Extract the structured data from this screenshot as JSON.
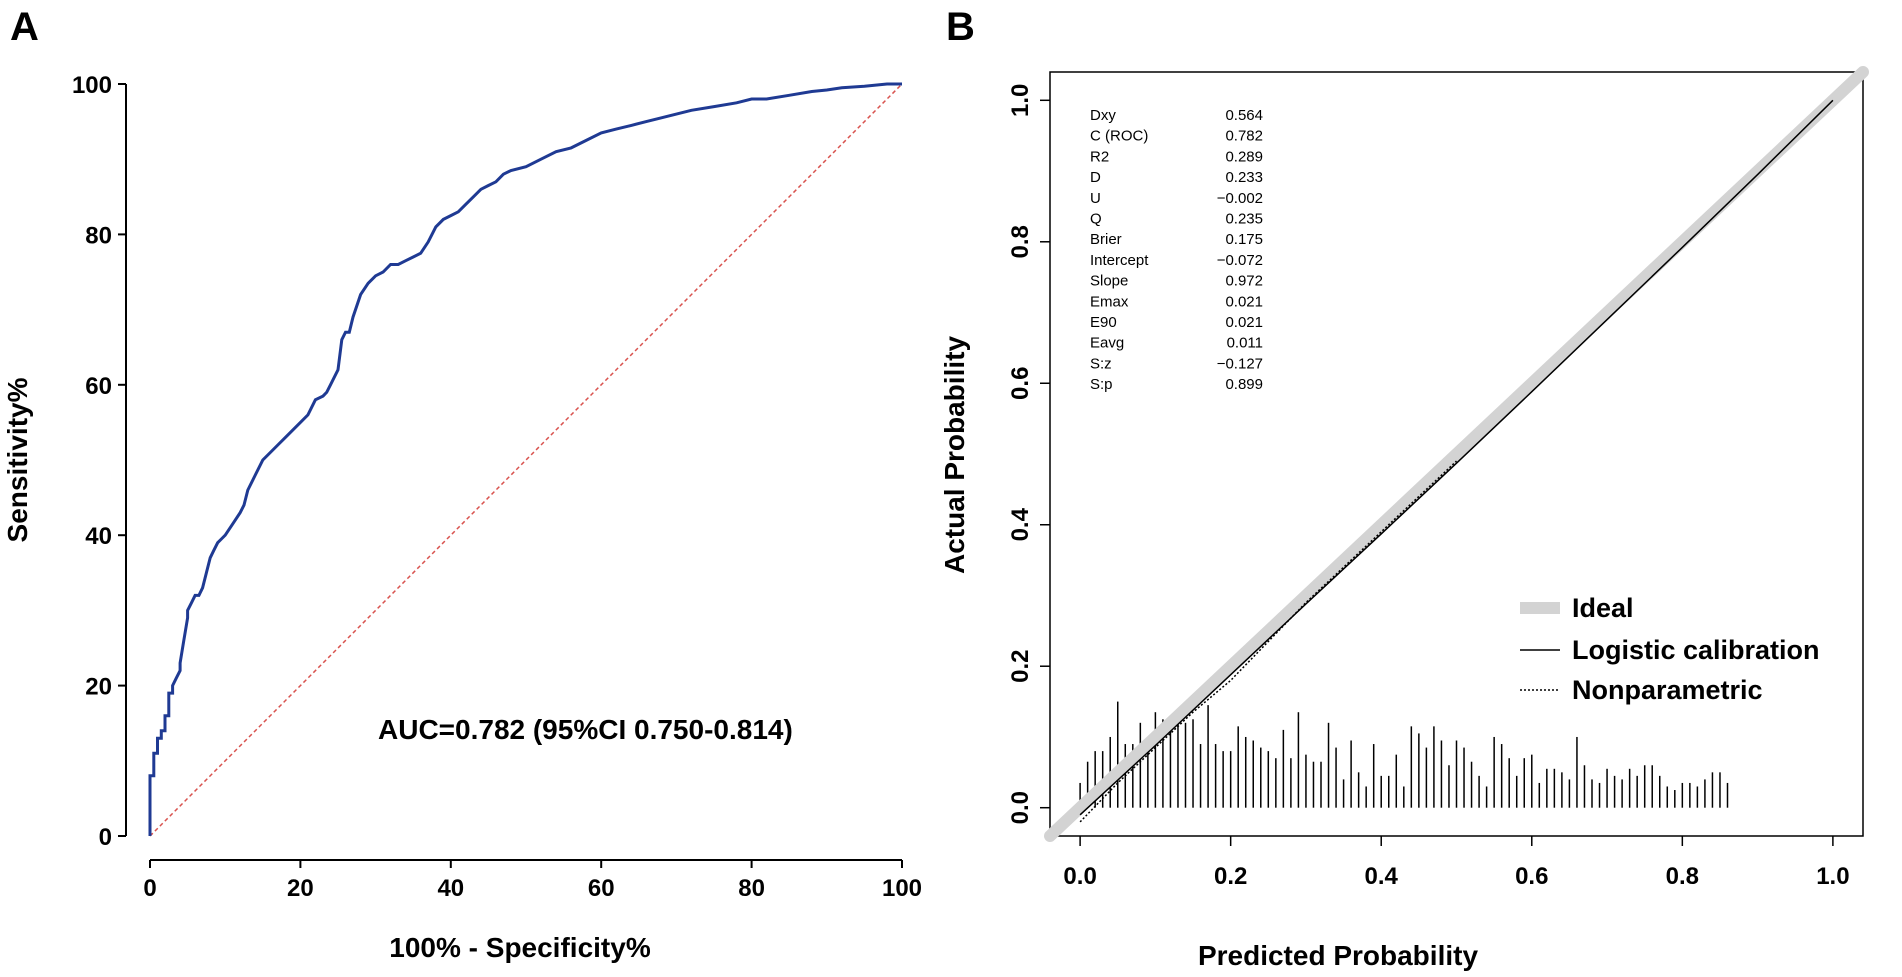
{
  "chart_data": [
    {
      "panel": "A",
      "type": "line",
      "xlabel": "100% - Specificity%",
      "ylabel": "Sensitivity%",
      "xlim": [
        0,
        100
      ],
      "ylim": [
        0,
        100
      ],
      "xticks": [
        "0",
        "20",
        "40",
        "60",
        "80",
        "100"
      ],
      "yticks": [
        "0",
        "20",
        "40",
        "60",
        "80",
        "100"
      ],
      "annotation": "AUC=0.782 (95%CI 0.750-0.814)",
      "colors": {
        "roc": "#1f3a93",
        "reference": "#d9534f"
      },
      "series": [
        {
          "x": [
            0,
            0,
            0.5,
            0.5,
            1,
            1,
            1.5,
            1.5,
            2,
            2,
            2.5,
            2.5,
            3,
            3,
            3.5,
            4,
            4,
            4.5,
            5,
            5,
            5.5,
            6,
            6.5,
            7,
            7.5,
            8,
            8.5,
            9,
            9.5,
            10,
            11,
            12,
            12.5,
            13,
            14,
            15,
            16,
            17,
            18,
            19,
            20,
            21,
            22,
            23,
            23.5,
            24,
            25,
            25.5,
            26,
            26.5,
            27,
            28,
            29,
            30,
            31,
            32,
            33,
            34,
            35,
            36,
            37,
            38,
            39,
            40,
            41,
            42,
            43,
            44,
            45,
            46,
            47,
            48,
            50,
            52,
            54,
            56,
            58,
            60,
            62,
            64,
            66,
            68,
            70,
            72,
            75,
            78,
            80,
            82,
            85,
            88,
            90,
            92,
            95,
            98,
            100
          ],
          "y": [
            0,
            8,
            8,
            11,
            11,
            13,
            13,
            14,
            14,
            16,
            16,
            19,
            19,
            20,
            21,
            22,
            23,
            26,
            29,
            30,
            31,
            32,
            32,
            33,
            35,
            37,
            38,
            39,
            39.5,
            40,
            41.5,
            43,
            44,
            46,
            48,
            50,
            51,
            52,
            53,
            54,
            55,
            56,
            58,
            58.5,
            59,
            60,
            62,
            66,
            67,
            67,
            69,
            72,
            73.5,
            74.5,
            75,
            76,
            76,
            76.5,
            77,
            77.5,
            79,
            81,
            82,
            82.5,
            83,
            84,
            85,
            86,
            86.5,
            87,
            88,
            88.5,
            89,
            90,
            91,
            91.5,
            92.5,
            93.5,
            94,
            94.5,
            95,
            95.5,
            96,
            96.5,
            97,
            97.5,
            98,
            98,
            98.5,
            99,
            99.2,
            99.5,
            99.7,
            100,
            100
          ]
        },
        {
          "x": [
            0,
            100
          ],
          "y": [
            0,
            100
          ]
        }
      ]
    },
    {
      "panel": "B",
      "type": "line",
      "xlabel": "Predicted Probability",
      "ylabel": "Actual Probability",
      "xlim": [
        -0.04,
        1.04
      ],
      "ylim": [
        -0.04,
        1.04
      ],
      "xticks": [
        "0.0",
        "0.2",
        "0.4",
        "0.6",
        "0.8",
        "1.0"
      ],
      "yticks": [
        "0.0",
        "0.2",
        "0.4",
        "0.6",
        "0.8",
        "1.0"
      ],
      "stats": [
        {
          "label": "Dxy",
          "value": "0.564"
        },
        {
          "label": "C (ROC)",
          "value": "0.782"
        },
        {
          "label": "R2",
          "value": "0.289"
        },
        {
          "label": "D",
          "value": "0.233"
        },
        {
          "label": "U",
          "value": "−0.002"
        },
        {
          "label": "Q",
          "value": "0.235"
        },
        {
          "label": "Brier",
          "value": "0.175"
        },
        {
          "label": "Intercept",
          "value": "−0.072"
        },
        {
          "label": "Slope",
          "value": "0.972"
        },
        {
          "label": "Emax",
          "value": "0.021"
        },
        {
          "label": "E90",
          "value": "0.021"
        },
        {
          "label": "Eavg",
          "value": "0.011"
        },
        {
          "label": "S:z",
          "value": "−0.127"
        },
        {
          "label": "S:p",
          "value": "0.899"
        }
      ],
      "legend": [
        "Ideal",
        "Logistic calibration",
        "Nonparametric"
      ],
      "colors": {
        "ideal": "#d3d3d3",
        "logistic": "#000000",
        "nonparametric": "#000000"
      },
      "ideal": {
        "x": [
          -0.04,
          1.04
        ],
        "y": [
          -0.04,
          1.04
        ]
      },
      "logistic": {
        "x": [
          0,
          0.1,
          0.2,
          0.3,
          0.4,
          0.5,
          0.6,
          0.7,
          0.8,
          0.9,
          1.0
        ],
        "y": [
          -0.01,
          0.088,
          0.188,
          0.288,
          0.387,
          0.487,
          0.588,
          0.69,
          0.792,
          0.895,
          1.0
        ]
      },
      "nonparametric": {
        "x": [
          0,
          0.05,
          0.1,
          0.15,
          0.2,
          0.25,
          0.3,
          0.35,
          0.4,
          0.45,
          0.5
        ],
        "y": [
          -0.02,
          0.035,
          0.085,
          0.135,
          0.18,
          0.235,
          0.29,
          0.34,
          0.39,
          0.44,
          0.49
        ]
      },
      "rug": {
        "x": [
          0.0,
          0.01,
          0.02,
          0.03,
          0.04,
          0.05,
          0.06,
          0.07,
          0.08,
          0.09,
          0.1,
          0.11,
          0.12,
          0.13,
          0.14,
          0.15,
          0.16,
          0.17,
          0.18,
          0.19,
          0.2,
          0.21,
          0.22,
          0.23,
          0.24,
          0.25,
          0.26,
          0.27,
          0.28,
          0.29,
          0.3,
          0.31,
          0.32,
          0.33,
          0.34,
          0.35,
          0.36,
          0.37,
          0.38,
          0.39,
          0.4,
          0.41,
          0.42,
          0.43,
          0.44,
          0.45,
          0.46,
          0.47,
          0.48,
          0.49,
          0.5,
          0.51,
          0.52,
          0.53,
          0.54,
          0.55,
          0.56,
          0.57,
          0.58,
          0.59,
          0.6,
          0.61,
          0.62,
          0.63,
          0.64,
          0.65,
          0.66,
          0.67,
          0.68,
          0.69,
          0.7,
          0.71,
          0.72,
          0.73,
          0.74,
          0.75,
          0.76,
          0.77,
          0.78,
          0.79,
          0.8,
          0.81,
          0.82,
          0.83,
          0.84,
          0.85,
          0.86
        ],
        "y": [
          0.035,
          0.065,
          0.08,
          0.08,
          0.1,
          0.15,
          0.09,
          0.09,
          0.12,
          0.08,
          0.135,
          0.125,
          0.12,
          0.135,
          0.12,
          0.125,
          0.09,
          0.145,
          0.09,
          0.08,
          0.08,
          0.115,
          0.1,
          0.095,
          0.085,
          0.08,
          0.07,
          0.11,
          0.07,
          0.135,
          0.075,
          0.065,
          0.065,
          0.12,
          0.085,
          0.04,
          0.095,
          0.05,
          0.03,
          0.09,
          0.045,
          0.045,
          0.075,
          0.03,
          0.115,
          0.105,
          0.085,
          0.115,
          0.095,
          0.06,
          0.095,
          0.085,
          0.065,
          0.045,
          0.03,
          0.1,
          0.09,
          0.07,
          0.045,
          0.07,
          0.075,
          0.035,
          0.055,
          0.055,
          0.05,
          0.04,
          0.1,
          0.06,
          0.04,
          0.035,
          0.055,
          0.045,
          0.04,
          0.055,
          0.045,
          0.06,
          0.06,
          0.045,
          0.03,
          0.025,
          0.035,
          0.035,
          0.03,
          0.04,
          0.05,
          0.05,
          0.035
        ]
      }
    }
  ]
}
